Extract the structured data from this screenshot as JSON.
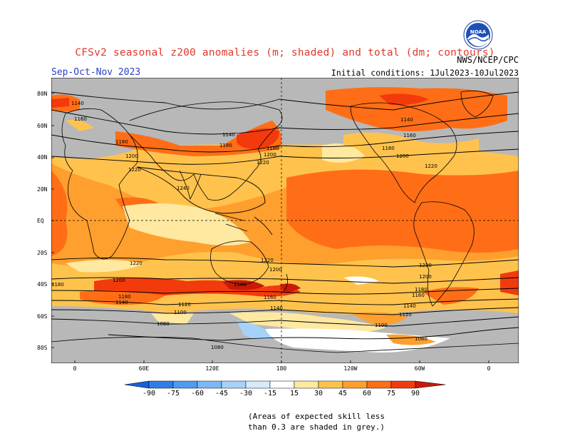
{
  "header": {
    "title": "CFSv2 seasonal z200 anomalies (m; shaded) and total (dm; contours)",
    "season": "Sep-Oct-Nov 2023",
    "initial_conditions": "Initial conditions: 1Jul2023-10Jul2023",
    "agency": "NWS/NCEP/CPC",
    "logo_text": "NOAA"
  },
  "map": {
    "lat_labels": [
      "80N",
      "60N",
      "40N",
      "20N",
      "EQ",
      "20S",
      "40S",
      "60S",
      "80S"
    ],
    "lon_labels": [
      "0",
      "60E",
      "120E",
      "180",
      "120W",
      "60W",
      "0"
    ],
    "contour_values": [
      "1080",
      "1100",
      "1120",
      "1140",
      "1160",
      "1180",
      "1200",
      "1220",
      "1240"
    ],
    "colors": {
      "ocean_land_mask": "#b8b8b8",
      "neg_90": "#1a5fd6",
      "neg_75": "#2e7ee8",
      "neg_60": "#4f9bf0",
      "neg_45": "#7bb8f6",
      "neg_30": "#a6d2fa",
      "pos_15": "#ffe8a0",
      "pos_30": "#ffc34d",
      "pos_45": "#ff9f2e",
      "pos_60": "#ff6e16",
      "pos_75": "#f23a0c",
      "pos_90": "#c81a08"
    }
  },
  "legend": {
    "labels": [
      "-90",
      "-75",
      "-60",
      "-45",
      "-30",
      "-15",
      "15",
      "30",
      "45",
      "60",
      "75",
      "90"
    ]
  },
  "note": {
    "line1": "(Areas of expected skill less",
    "line2": "than 0.3 are shaded in grey.)"
  }
}
